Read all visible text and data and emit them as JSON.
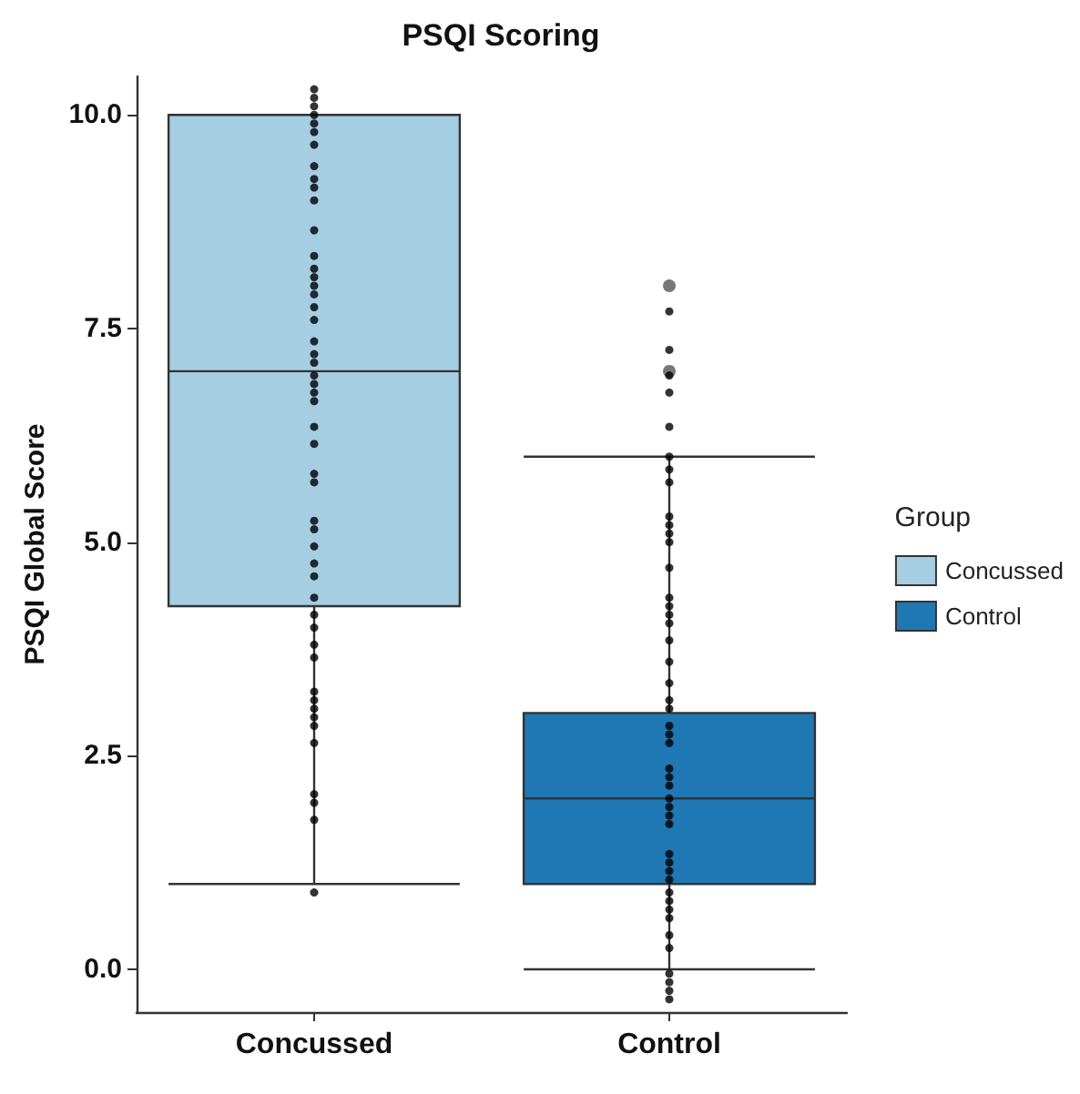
{
  "chart_data": {
    "type": "box",
    "title": "PSQI Scoring",
    "ylabel": "PSQI Global Score",
    "legend_title": "Group",
    "categories": [
      "Concussed",
      "Control"
    ],
    "ylim": [
      -0.5,
      10.45
    ],
    "yticks": [
      {
        "value": 0,
        "label": "0.0"
      },
      {
        "value": 2.5,
        "label": "2.5"
      },
      {
        "value": 5,
        "label": "5.0"
      },
      {
        "value": 7.5,
        "label": "7.5"
      },
      {
        "value": 10,
        "label": "10.0"
      }
    ],
    "grid": false,
    "legend": "right",
    "series": [
      {
        "name": "Concussed",
        "color": "#a6cee3",
        "boxes": [
          {
            "low": 1,
            "q1": 4.25,
            "median": 7,
            "q3": 10,
            "high": 10
          },
          null
        ]
      },
      {
        "name": "Control",
        "color": "#1f78b4",
        "boxes": [
          null,
          {
            "low": 0,
            "q1": 1,
            "median": 2,
            "q3": 3,
            "high": 6,
            "outliers": [
              8,
              7
            ]
          }
        ]
      },
      {
        "type": "scatter",
        "color": "#000000",
        "marker": "circle",
        "x": [
          "Concussed",
          "Concussed",
          "Concussed",
          "Concussed",
          "Concussed",
          "Concussed",
          "Concussed",
          "Concussed",
          "Concussed",
          "Concussed",
          "Concussed",
          "Concussed",
          "Concussed",
          "Concussed",
          "Concussed",
          "Concussed",
          "Concussed",
          "Concussed",
          "Concussed",
          "Concussed",
          "Concussed",
          "Concussed",
          "Concussed",
          "Concussed",
          "Concussed",
          "Concussed",
          "Concussed",
          "Concussed",
          "Concussed",
          "Concussed",
          "Concussed",
          "Concussed",
          "Concussed",
          "Concussed",
          "Concussed",
          "Concussed",
          "Concussed",
          "Concussed",
          "Concussed",
          "Concussed",
          "Concussed",
          "Concussed",
          "Concussed",
          "Concussed",
          "Concussed",
          "Concussed",
          "Concussed",
          "Concussed",
          "Concussed",
          "Concussed"
        ],
        "values": [
          10.3,
          10.2,
          10.1,
          10,
          9.9,
          9.8,
          9.65,
          9.4,
          9.25,
          9.15,
          9,
          8.65,
          8.35,
          8.2,
          8.1,
          8,
          7.9,
          7.75,
          7.6,
          7.35,
          7.2,
          7.1,
          6.95,
          6.85,
          6.75,
          6.65,
          6.35,
          6.15,
          5.8,
          5.7,
          5.25,
          5.15,
          4.95,
          4.75,
          4.6,
          4.35,
          4.15,
          4,
          3.8,
          3.65,
          3.25,
          3.15,
          3.05,
          2.95,
          2.85,
          2.65,
          2.05,
          1.95,
          1.75,
          0.9
        ]
      },
      {
        "type": "scatter",
        "color": "#000000",
        "marker": "circle",
        "x": [
          "Control",
          "Control",
          "Control",
          "Control",
          "Control",
          "Control",
          "Control",
          "Control",
          "Control",
          "Control",
          "Control",
          "Control",
          "Control",
          "Control",
          "Control",
          "Control",
          "Control",
          "Control",
          "Control",
          "Control",
          "Control",
          "Control",
          "Control",
          "Control",
          "Control",
          "Control",
          "Control",
          "Control",
          "Control",
          "Control",
          "Control",
          "Control",
          "Control",
          "Control",
          "Control",
          "Control",
          "Control",
          "Control",
          "Control",
          "Control",
          "Control",
          "Control",
          "Control",
          "Control",
          "Control",
          "Control"
        ],
        "values": [
          7.7,
          7.25,
          6.95,
          6.75,
          6.35,
          6,
          5.85,
          5.7,
          5.3,
          5.2,
          5.1,
          5,
          4.7,
          4.35,
          4.25,
          4.15,
          4.05,
          3.85,
          3.6,
          3.35,
          3.15,
          3.05,
          2.85,
          2.75,
          2.65,
          2.35,
          2.25,
          2.15,
          2,
          1.9,
          1.8,
          1.7,
          1.35,
          1.25,
          1.15,
          1.05,
          0.9,
          0.8,
          0.7,
          0.6,
          0.4,
          0.25,
          -0.05,
          -0.15,
          -0.25,
          -0.35
        ]
      }
    ]
  }
}
